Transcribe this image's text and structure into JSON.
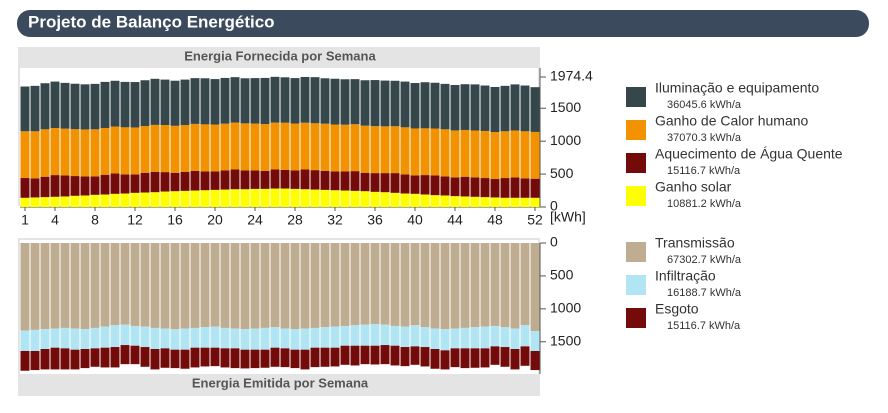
{
  "header": {
    "title": "Projeto de Balanço Energético"
  },
  "chart_data": [
    {
      "type": "bar",
      "stacked": true,
      "title": "Energia Fornecida por Semana",
      "y_label": "[kWh]",
      "x": [
        1,
        2,
        3,
        4,
        5,
        6,
        7,
        8,
        9,
        10,
        11,
        12,
        13,
        14,
        15,
        16,
        17,
        18,
        19,
        20,
        21,
        22,
        23,
        24,
        25,
        26,
        27,
        28,
        29,
        30,
        31,
        32,
        33,
        34,
        35,
        36,
        37,
        38,
        39,
        40,
        41,
        42,
        43,
        44,
        45,
        46,
        47,
        48,
        49,
        50,
        51,
        52
      ],
      "xticks": [
        1,
        4,
        8,
        12,
        16,
        20,
        24,
        28,
        32,
        36,
        40,
        44,
        48,
        52
      ],
      "xlim": [
        0.5,
        52.5
      ],
      "ylim": [
        0,
        1974.4
      ],
      "yticks": [
        0,
        500,
        1000,
        1500,
        1974.4
      ],
      "series": [
        {
          "name": "Iluminação e equipamento",
          "total": "36045.6 kWh/a",
          "color": "#36474b",
          "values": [
            680,
            690,
            700,
            705,
            695,
            690,
            685,
            690,
            700,
            695,
            690,
            690,
            695,
            700,
            690,
            685,
            690,
            695,
            700,
            690,
            695,
            690,
            685,
            690,
            700,
            695,
            690,
            690,
            695,
            700,
            690,
            695,
            690,
            685,
            690,
            700,
            695,
            690,
            695,
            690,
            700,
            695,
            690,
            690,
            695,
            700,
            690,
            685,
            690,
            700,
            695,
            680
          ]
        },
        {
          "name": "Ganho de Calor humano",
          "total": "37070.3 kWh/a",
          "color": "#f29200",
          "values": [
            710,
            715,
            720,
            715,
            710,
            712,
            713,
            715,
            710,
            712,
            715,
            713,
            710,
            712,
            715,
            713,
            710,
            712,
            715,
            713,
            710,
            712,
            715,
            713,
            710,
            712,
            715,
            713,
            710,
            712,
            715,
            713,
            710,
            712,
            715,
            713,
            710,
            712,
            715,
            713,
            710,
            712,
            715,
            713,
            710,
            712,
            715,
            713,
            710,
            712,
            715,
            710
          ]
        },
        {
          "name": "Aquecimento de Água Quente",
          "total": "15116.7 kWh/a",
          "color": "#730b0b",
          "values": [
            300,
            290,
            310,
            330,
            320,
            300,
            290,
            280,
            300,
            310,
            290,
            280,
            300,
            310,
            295,
            280,
            290,
            300,
            285,
            280,
            290,
            300,
            285,
            280,
            275,
            290,
            285,
            280,
            300,
            295,
            290,
            285,
            290,
            300,
            280,
            285,
            290,
            300,
            290,
            280,
            295,
            300,
            290,
            285,
            300,
            295,
            290,
            280,
            300,
            310,
            295,
            290
          ]
        },
        {
          "name": "Ganho solar",
          "total": "10881.2 kWh/a",
          "color": "#ffff00",
          "values": [
            140,
            145,
            150,
            155,
            160,
            170,
            175,
            185,
            190,
            200,
            205,
            215,
            220,
            225,
            235,
            240,
            245,
            250,
            255,
            260,
            265,
            270,
            270,
            275,
            275,
            280,
            280,
            275,
            270,
            265,
            260,
            255,
            250,
            245,
            240,
            230,
            225,
            215,
            205,
            200,
            190,
            180,
            175,
            165,
            160,
            155,
            150,
            145,
            140,
            140,
            140,
            140
          ]
        }
      ]
    },
    {
      "type": "bar",
      "stacked": true,
      "inverted": true,
      "title": "Energia Emitida por Semana",
      "x": [
        1,
        2,
        3,
        4,
        5,
        6,
        7,
        8,
        9,
        10,
        11,
        12,
        13,
        14,
        15,
        16,
        17,
        18,
        19,
        20,
        21,
        22,
        23,
        24,
        25,
        26,
        27,
        28,
        29,
        30,
        31,
        32,
        33,
        34,
        35,
        36,
        37,
        38,
        39,
        40,
        41,
        42,
        43,
        44,
        45,
        46,
        47,
        48,
        49,
        50,
        51,
        52
      ],
      "xlim": [
        0.5,
        52.5
      ],
      "ylim": [
        0,
        1974.4
      ],
      "yticks": [
        0,
        500,
        1000,
        1500
      ],
      "series": [
        {
          "name": "Transmissão",
          "total": "67302.7 kWh/a",
          "color": "#bfad91",
          "values": [
            1330,
            1320,
            1310,
            1300,
            1290,
            1300,
            1310,
            1290,
            1270,
            1250,
            1240,
            1260,
            1270,
            1290,
            1300,
            1310,
            1300,
            1290,
            1280,
            1270,
            1290,
            1300,
            1310,
            1300,
            1290,
            1280,
            1300,
            1310,
            1300,
            1290,
            1280,
            1270,
            1260,
            1250,
            1240,
            1230,
            1240,
            1260,
            1270,
            1250,
            1280,
            1300,
            1310,
            1300,
            1290,
            1280,
            1270,
            1260,
            1280,
            1300,
            1250,
            1340
          ]
        },
        {
          "name": "Infiltração",
          "total": "16188.7 kWh/a",
          "color": "#b2e5f3",
          "values": [
            310,
            320,
            300,
            290,
            310,
            320,
            300,
            310,
            320,
            330,
            310,
            300,
            310,
            320,
            300,
            310,
            320,
            300,
            310,
            320,
            310,
            300,
            310,
            320,
            330,
            310,
            300,
            310,
            320,
            300,
            310,
            320,
            300,
            310,
            320,
            330,
            310,
            300,
            310,
            320,
            300,
            310,
            320,
            300,
            310,
            320,
            330,
            310,
            300,
            310,
            320,
            300
          ]
        },
        {
          "name": "Esgoto",
          "total": "15116.7 kWh/a",
          "color": "#730b0b",
          "values": [
            300,
            290,
            310,
            330,
            320,
            300,
            290,
            280,
            300,
            310,
            290,
            280,
            300,
            310,
            295,
            280,
            290,
            300,
            285,
            280,
            290,
            300,
            285,
            280,
            275,
            290,
            285,
            280,
            300,
            295,
            290,
            285,
            290,
            300,
            280,
            285,
            290,
            300,
            290,
            280,
            295,
            300,
            290,
            285,
            300,
            295,
            290,
            280,
            300,
            310,
            295,
            290
          ]
        }
      ]
    }
  ]
}
